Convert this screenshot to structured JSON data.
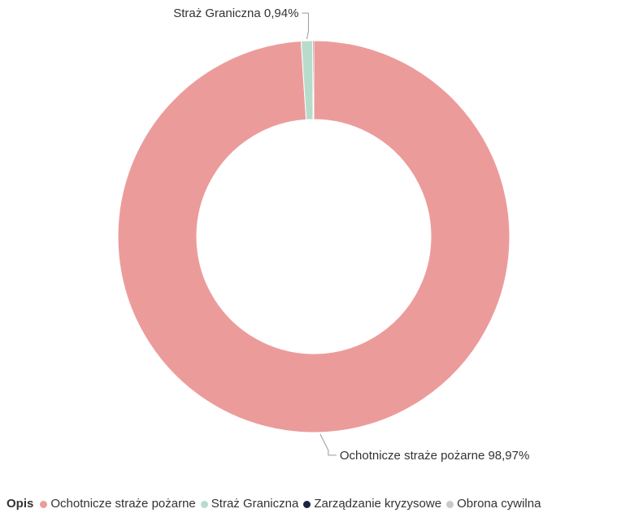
{
  "chart_data": {
    "type": "pie",
    "donut": true,
    "legend_title": "Opis",
    "legend_position": "bottom-left",
    "slices": [
      {
        "name": "Ochotnicze straże pożarne",
        "value": 98.97,
        "label": "Ochotnicze straże pożarne 98,97%",
        "color": "#ec9b9b"
      },
      {
        "name": "Straż Graniczna",
        "value": 0.94,
        "label": "Straż Graniczna 0,94%",
        "color": "#b8dccb"
      },
      {
        "name": "Zarządzanie kryzysowe",
        "value": 0.09,
        "label": "",
        "color": "#1b2340"
      },
      {
        "name": "Obrona cywilna",
        "value": 0.0,
        "label": "",
        "color": "#c9c9c9"
      }
    ]
  }
}
